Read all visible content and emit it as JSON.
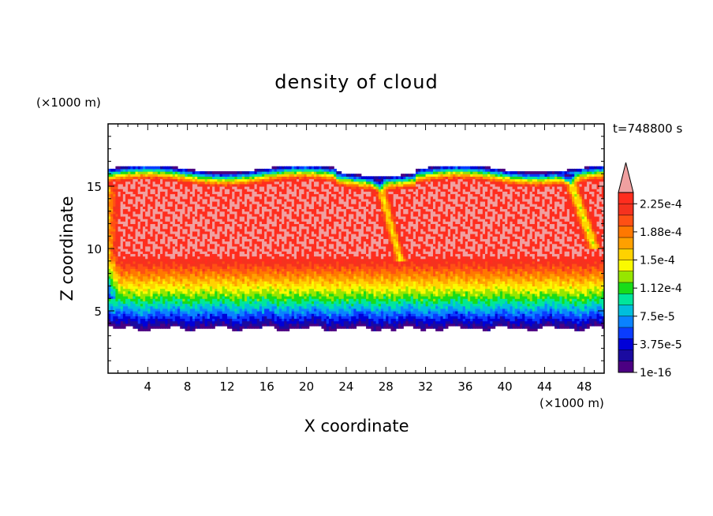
{
  "chart_data": {
    "type": "heatmap",
    "title": "density of cloud",
    "xlabel": "X coordinate",
    "ylabel": "Z coordinate",
    "x_unit": "(×1000 m)",
    "y_unit": "(×1000 m)",
    "time_label": "t=748800 s",
    "xlim": [
      0,
      50
    ],
    "ylim": [
      0,
      20
    ],
    "x_ticks": [
      4,
      8,
      12,
      16,
      20,
      24,
      28,
      32,
      36,
      40,
      44,
      48
    ],
    "y_ticks": [
      5,
      10,
      15
    ],
    "colorbar": {
      "labels": [
        "1e-16",
        "3.75e-5",
        "7.5e-5",
        "1.12e-4",
        "1.5e-4",
        "1.88e-4",
        "2.25e-4"
      ],
      "colors": [
        "#4b0082",
        "#1a0aa0",
        "#0000d8",
        "#0a3cff",
        "#0a82ff",
        "#00bedc",
        "#00e69b",
        "#19dc19",
        "#96e600",
        "#fafa00",
        "#ffd200",
        "#ffa000",
        "#ff7800",
        "#ff5014",
        "#f5321e",
        "#ff2d1e"
      ],
      "over_color": "#f0a0a0"
    },
    "cloud": {
      "base_km": 3.6,
      "top_km": 16.8,
      "max_value": 0.00024
    }
  }
}
